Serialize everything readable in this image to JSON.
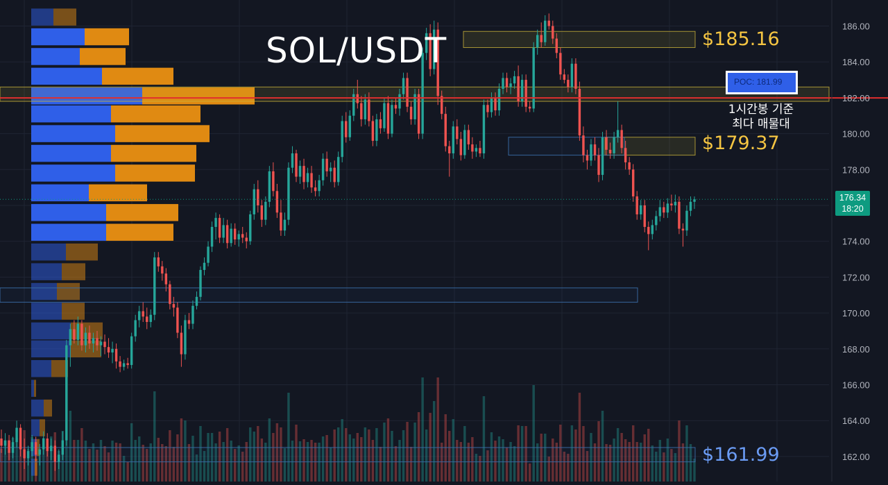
{
  "chart_data": {
    "type": "candlestick",
    "title": "SOL/USDT",
    "y_axis": {
      "position": "right",
      "ticks": [
        "186.00",
        "184.00",
        "182.00",
        "180.00",
        "178.00",
        "176.00",
        "174.00",
        "172.00",
        "170.00",
        "168.00",
        "166.00",
        "164.00",
        "162.00"
      ],
      "range": [
        161.2,
        187.4
      ]
    },
    "last_price": {
      "price": 176.34,
      "label": "176.34",
      "countdown": "18:20",
      "color": "#0e9b80"
    },
    "levels": [
      {
        "price": 185.16,
        "label": "$185.16",
        "color": "#f5c542"
      },
      {
        "price": 179.37,
        "label": "$179.37",
        "color": "#f5c542"
      },
      {
        "price": 161.99,
        "label": "$161.99",
        "color": "#6b9cf5"
      }
    ],
    "poc": {
      "price": 181.99,
      "label": "POC: 181.99",
      "line_color": "#e02e2e",
      "note_line1": "1시간봉 기준",
      "note_line2": "최다 매물대"
    },
    "zones": [
      {
        "low": 184.8,
        "high": 185.7,
        "color": "#c9b23a",
        "style": "fill"
      },
      {
        "low": 181.8,
        "high": 182.6,
        "color": "#c9b23a",
        "style": "fill"
      },
      {
        "low": 178.8,
        "high": 179.8,
        "color": "#c9b23a",
        "style": "fill"
      },
      {
        "low": 178.8,
        "high": 179.8,
        "color": "#3b6ea8",
        "style": "outline"
      },
      {
        "low": 170.6,
        "high": 171.4,
        "color": "#3b6ea8",
        "style": "outline"
      },
      {
        "low": 161.7,
        "high": 162.5,
        "color": "#3b6ea8",
        "style": "outline"
      }
    ],
    "volume_profile": {
      "colors": {
        "buy": "#2f5fe8",
        "sell": "#e08a12"
      },
      "rows": [
        {
          "price": 186.5,
          "buy": 32,
          "sell": 33
        },
        {
          "price": 185.4,
          "buy": 77,
          "sell": 64
        },
        {
          "price": 184.3,
          "buy": 70,
          "sell": 66
        },
        {
          "price": 183.2,
          "buy": 102,
          "sell": 103
        },
        {
          "price": 182.1,
          "buy": 160,
          "sell": 162
        },
        {
          "price": 181.1,
          "buy": 115,
          "sell": 129
        },
        {
          "price": 180.0,
          "buy": 121,
          "sell": 136
        },
        {
          "price": 178.9,
          "buy": 115,
          "sell": 123
        },
        {
          "price": 177.8,
          "buy": 121,
          "sell": 115
        },
        {
          "price": 176.7,
          "buy": 83,
          "sell": 84
        },
        {
          "price": 175.6,
          "buy": 108,
          "sell": 104
        },
        {
          "price": 174.5,
          "buy": 108,
          "sell": 97
        },
        {
          "price": 173.4,
          "buy": 50,
          "sell": 46
        },
        {
          "price": 172.3,
          "buy": 44,
          "sell": 34
        },
        {
          "price": 171.2,
          "buy": 37,
          "sell": 33
        },
        {
          "price": 170.1,
          "buy": 44,
          "sell": 33
        },
        {
          "price": 169.0,
          "buy": 57,
          "sell": 46
        },
        {
          "price": 168.0,
          "buy": 57,
          "sell": 44
        },
        {
          "price": 166.9,
          "buy": 29,
          "sell": 24
        },
        {
          "price": 165.8,
          "buy": 4,
          "sell": 3
        },
        {
          "price": 164.7,
          "buy": 18,
          "sell": 12
        },
        {
          "price": 163.6,
          "buy": 12,
          "sell": 8
        },
        {
          "price": 162.5,
          "buy": 8,
          "sell": 4
        },
        {
          "price": 161.4,
          "buy": 5,
          "sell": 4
        }
      ]
    },
    "candles": [
      [
        163.0,
        163.5,
        162.2,
        162.6
      ],
      [
        162.6,
        163.3,
        162.1,
        162.9
      ],
      [
        162.9,
        163.2,
        161.8,
        162.2
      ],
      [
        162.2,
        163.1,
        161.9,
        162.8
      ],
      [
        162.8,
        164.0,
        162.5,
        163.6
      ],
      [
        163.6,
        163.8,
        162.0,
        162.4
      ],
      [
        162.4,
        163.0,
        161.3,
        161.9
      ],
      [
        161.9,
        162.6,
        161.5,
        162.3
      ],
      [
        162.3,
        163.2,
        162.0,
        162.8
      ],
      [
        162.8,
        163.1,
        161.7,
        162.1
      ],
      [
        162.1,
        162.7,
        161.5,
        162.4
      ],
      [
        162.4,
        163.4,
        162.1,
        163.0
      ],
      [
        163.0,
        163.3,
        162.0,
        162.3
      ],
      [
        162.3,
        163.0,
        161.8,
        162.6
      ],
      [
        162.6,
        162.9,
        161.2,
        161.7
      ],
      [
        161.7,
        162.4,
        161.3,
        162.1
      ],
      [
        162.1,
        163.4,
        161.8,
        162.9
      ],
      [
        162.9,
        168.5,
        162.6,
        168.2
      ],
      [
        168.2,
        169.4,
        167.0,
        169.1
      ],
      [
        169.1,
        169.6,
        168.3,
        168.5
      ],
      [
        168.5,
        169.8,
        168.2,
        169.4
      ],
      [
        169.4,
        169.6,
        167.9,
        168.2
      ],
      [
        168.2,
        169.2,
        167.8,
        168.9
      ],
      [
        168.9,
        169.3,
        168.0,
        168.3
      ],
      [
        168.3,
        168.9,
        167.8,
        168.6
      ],
      [
        168.6,
        169.0,
        167.9,
        168.2
      ],
      [
        168.2,
        168.7,
        167.6,
        168.4
      ],
      [
        168.4,
        168.8,
        167.7,
        168.1
      ],
      [
        168.1,
        168.6,
        167.5,
        167.8
      ],
      [
        167.8,
        168.4,
        167.2,
        168.0
      ],
      [
        168.0,
        168.3,
        166.9,
        167.3
      ],
      [
        167.3,
        167.6,
        166.7,
        167.0
      ],
      [
        167.0,
        167.4,
        166.8,
        167.2
      ],
      [
        167.2,
        167.5,
        166.9,
        167.1
      ],
      [
        167.1,
        168.9,
        166.9,
        168.7
      ],
      [
        168.7,
        169.9,
        168.4,
        169.6
      ],
      [
        169.6,
        170.4,
        169.2,
        170.1
      ],
      [
        170.1,
        170.6,
        169.5,
        169.8
      ],
      [
        169.8,
        170.3,
        169.1,
        169.5
      ],
      [
        169.5,
        170.2,
        169.2,
        169.9
      ],
      [
        169.9,
        173.4,
        169.6,
        173.1
      ],
      [
        173.1,
        173.4,
        172.3,
        172.6
      ],
      [
        172.6,
        172.9,
        171.8,
        172.2
      ],
      [
        172.2,
        172.5,
        171.2,
        171.6
      ],
      [
        171.6,
        171.8,
        170.2,
        170.5
      ],
      [
        170.5,
        170.9,
        169.8,
        170.3
      ],
      [
        170.3,
        170.6,
        168.6,
        168.9
      ],
      [
        168.9,
        169.3,
        167.0,
        167.7
      ],
      [
        167.7,
        169.9,
        167.4,
        169.6
      ],
      [
        169.6,
        170.0,
        169.1,
        169.4
      ],
      [
        169.4,
        170.7,
        169.1,
        170.4
      ],
      [
        170.4,
        171.2,
        170.2,
        170.9
      ],
      [
        170.9,
        172.6,
        170.7,
        172.4
      ],
      [
        172.4,
        173.1,
        172.1,
        172.8
      ],
      [
        172.8,
        174.0,
        172.6,
        173.7
      ],
      [
        173.7,
        175.1,
        173.4,
        174.8
      ],
      [
        174.8,
        175.6,
        174.1,
        175.3
      ],
      [
        175.3,
        175.5,
        173.9,
        174.2
      ],
      [
        174.2,
        175.3,
        173.9,
        174.9
      ],
      [
        174.9,
        175.2,
        173.6,
        173.9
      ],
      [
        173.9,
        175.0,
        173.7,
        174.7
      ],
      [
        174.7,
        175.0,
        173.8,
        174.1
      ],
      [
        174.1,
        174.6,
        173.7,
        174.4
      ],
      [
        174.4,
        174.8,
        173.9,
        174.2
      ],
      [
        174.2,
        174.5,
        173.6,
        174.0
      ],
      [
        174.0,
        175.7,
        173.8,
        175.5
      ],
      [
        175.5,
        177.2,
        175.2,
        176.9
      ],
      [
        176.9,
        177.4,
        175.6,
        176.0
      ],
      [
        176.0,
        176.3,
        174.8,
        175.2
      ],
      [
        175.2,
        176.5,
        174.9,
        176.2
      ],
      [
        176.2,
        178.2,
        175.9,
        177.9
      ],
      [
        177.9,
        178.4,
        176.5,
        176.8
      ],
      [
        176.8,
        177.2,
        175.3,
        175.6
      ],
      [
        175.6,
        176.3,
        174.3,
        174.6
      ],
      [
        174.6,
        175.6,
        174.3,
        175.2
      ],
      [
        175.2,
        178.4,
        174.9,
        178.1
      ],
      [
        178.1,
        179.3,
        177.8,
        178.9
      ],
      [
        178.9,
        179.1,
        177.3,
        177.6
      ],
      [
        177.6,
        178.5,
        177.2,
        178.2
      ],
      [
        178.2,
        178.6,
        176.9,
        177.3
      ],
      [
        177.3,
        178.1,
        177.0,
        177.8
      ],
      [
        177.8,
        178.2,
        176.7,
        177.0
      ],
      [
        177.0,
        177.4,
        176.5,
        176.8
      ],
      [
        176.8,
        177.7,
        176.5,
        177.4
      ],
      [
        177.4,
        178.9,
        177.1,
        178.6
      ],
      [
        178.6,
        179.0,
        177.6,
        177.9
      ],
      [
        177.9,
        178.4,
        177.3,
        178.1
      ],
      [
        178.1,
        178.5,
        177.0,
        177.3
      ],
      [
        177.3,
        179.0,
        177.1,
        178.7
      ],
      [
        178.7,
        181.0,
        178.4,
        180.7
      ],
      [
        180.7,
        181.2,
        179.5,
        179.8
      ],
      [
        179.8,
        181.3,
        179.6,
        181.0
      ],
      [
        181.0,
        182.5,
        180.7,
        182.2
      ],
      [
        182.2,
        183.0,
        181.4,
        181.7
      ],
      [
        181.7,
        182.1,
        180.4,
        180.8
      ],
      [
        180.8,
        182.2,
        180.5,
        181.9
      ],
      [
        181.9,
        182.3,
        180.4,
        180.7
      ],
      [
        180.7,
        181.0,
        179.3,
        179.6
      ],
      [
        179.6,
        181.1,
        179.3,
        180.8
      ],
      [
        180.8,
        181.2,
        180.0,
        180.3
      ],
      [
        180.3,
        182.0,
        180.1,
        181.7
      ],
      [
        181.7,
        182.1,
        179.7,
        180.0
      ],
      [
        180.0,
        181.9,
        179.8,
        181.6
      ],
      [
        181.6,
        182.0,
        181.1,
        181.4
      ],
      [
        181.4,
        182.5,
        181.0,
        182.2
      ],
      [
        182.2,
        183.4,
        181.9,
        183.1
      ],
      [
        183.1,
        183.4,
        181.2,
        181.5
      ],
      [
        181.5,
        181.8,
        180.5,
        180.8
      ],
      [
        180.8,
        182.5,
        180.5,
        182.2
      ],
      [
        182.2,
        182.5,
        179.7,
        180.0
      ],
      [
        180.0,
        184.8,
        179.7,
        184.5
      ],
      [
        184.5,
        185.9,
        184.1,
        185.6
      ],
      [
        185.6,
        186.1,
        183.2,
        183.6
      ],
      [
        183.6,
        186.3,
        183.3,
        185.8
      ],
      [
        185.8,
        186.2,
        181.6,
        182.1
      ],
      [
        182.1,
        182.4,
        180.8,
        181.1
      ],
      [
        181.1,
        181.5,
        179.0,
        179.3
      ],
      [
        179.3,
        179.6,
        177.6,
        178.9
      ],
      [
        178.9,
        180.7,
        178.6,
        180.4
      ],
      [
        180.4,
        180.8,
        179.4,
        179.7
      ],
      [
        179.7,
        180.1,
        178.5,
        178.8
      ],
      [
        178.8,
        180.5,
        178.6,
        180.2
      ],
      [
        180.2,
        180.5,
        179.1,
        179.4
      ],
      [
        179.4,
        179.8,
        178.6,
        179.0
      ],
      [
        179.0,
        179.4,
        178.7,
        179.2
      ],
      [
        179.2,
        179.6,
        178.7,
        178.9
      ],
      [
        178.9,
        181.9,
        178.6,
        181.6
      ],
      [
        181.6,
        181.9,
        180.9,
        181.2
      ],
      [
        181.2,
        182.3,
        180.9,
        182.0
      ],
      [
        182.0,
        182.3,
        181.0,
        181.3
      ],
      [
        181.3,
        182.8,
        181.0,
        182.5
      ],
      [
        182.5,
        183.4,
        182.2,
        183.1
      ],
      [
        183.1,
        183.4,
        182.3,
        182.6
      ],
      [
        182.6,
        183.1,
        182.2,
        182.8
      ],
      [
        182.8,
        183.5,
        182.5,
        183.2
      ],
      [
        183.2,
        183.8,
        181.5,
        181.8
      ],
      [
        181.8,
        183.3,
        181.5,
        183.0
      ],
      [
        183.0,
        183.3,
        181.2,
        181.5
      ],
      [
        181.5,
        181.8,
        181.2,
        181.4
      ],
      [
        181.4,
        185.1,
        181.2,
        184.8
      ],
      [
        184.8,
        185.8,
        184.4,
        185.5
      ],
      [
        185.5,
        186.2,
        184.8,
        185.1
      ],
      [
        185.1,
        186.6,
        184.9,
        186.3
      ],
      [
        186.3,
        186.7,
        185.8,
        186.0
      ],
      [
        186.0,
        186.3,
        185.0,
        185.3
      ],
      [
        185.3,
        185.6,
        184.2,
        184.5
      ],
      [
        184.5,
        184.8,
        183.0,
        183.3
      ],
      [
        183.3,
        183.6,
        182.8,
        183.0
      ],
      [
        183.0,
        183.3,
        182.3,
        182.6
      ],
      [
        182.6,
        184.2,
        182.3,
        183.9
      ],
      [
        183.9,
        184.2,
        182.2,
        182.5
      ],
      [
        182.5,
        182.9,
        179.6,
        179.9
      ],
      [
        179.9,
        180.4,
        178.4,
        178.8
      ],
      [
        178.8,
        179.1,
        178.0,
        178.5
      ],
      [
        178.5,
        179.7,
        178.2,
        179.4
      ],
      [
        179.4,
        179.8,
        178.5,
        178.8
      ],
      [
        178.8,
        179.2,
        177.3,
        177.7
      ],
      [
        177.7,
        180.1,
        177.4,
        179.8
      ],
      [
        179.8,
        180.2,
        178.8,
        179.1
      ],
      [
        179.1,
        179.5,
        178.6,
        178.9
      ],
      [
        178.9,
        180.1,
        178.6,
        179.8
      ],
      [
        179.8,
        181.8,
        179.5,
        180.2
      ],
      [
        180.2,
        180.5,
        178.9,
        179.2
      ],
      [
        179.2,
        179.6,
        178.0,
        178.4
      ],
      [
        178.4,
        178.7,
        177.7,
        178.0
      ],
      [
        178.0,
        178.3,
        176.2,
        176.5
      ],
      [
        176.5,
        176.8,
        175.2,
        175.5
      ],
      [
        175.5,
        176.3,
        175.2,
        176.0
      ],
      [
        176.0,
        176.3,
        174.5,
        174.8
      ],
      [
        174.8,
        175.1,
        173.5,
        174.4
      ],
      [
        174.4,
        175.2,
        174.1,
        174.9
      ],
      [
        174.9,
        175.7,
        174.6,
        175.4
      ],
      [
        175.4,
        176.3,
        175.1,
        175.9
      ],
      [
        175.9,
        176.2,
        175.3,
        175.6
      ],
      [
        175.6,
        176.4,
        175.3,
        176.1
      ],
      [
        176.1,
        176.6,
        175.7,
        176.0
      ],
      [
        176.0,
        176.6,
        175.6,
        176.2
      ],
      [
        176.2,
        176.5,
        174.4,
        174.7
      ],
      [
        174.7,
        175.0,
        173.7,
        174.6
      ],
      [
        174.6,
        176.0,
        174.3,
        175.7
      ],
      [
        175.7,
        176.5,
        175.4,
        176.2
      ],
      [
        176.2,
        176.5,
        175.8,
        176.34
      ]
    ]
  }
}
